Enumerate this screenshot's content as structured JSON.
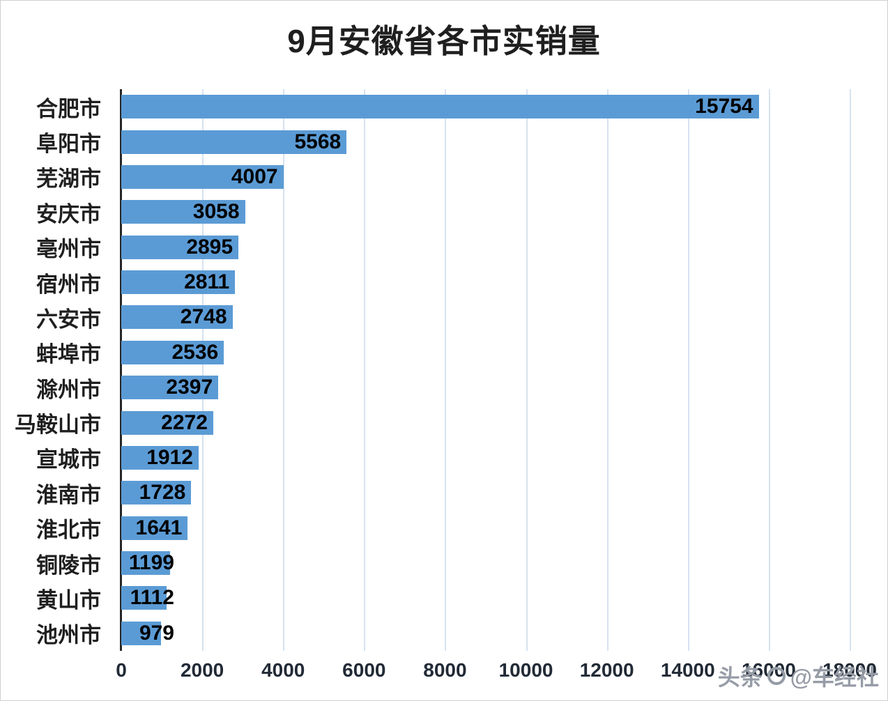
{
  "title": "9月安徽省各市实销量",
  "watermark": {
    "prefix": "头条",
    "handle": "@车经社"
  },
  "chart_data": {
    "type": "bar",
    "orientation": "horizontal",
    "title": "9月安徽省各市实销量",
    "categories": [
      "合肥市",
      "阜阳市",
      "芜湖市",
      "安庆市",
      "亳州市",
      "宿州市",
      "六安市",
      "蚌埠市",
      "滁州市",
      "马鞍山市",
      "宣城市",
      "淮南市",
      "淮北市",
      "铜陵市",
      "黄山市",
      "池州市"
    ],
    "values": [
      15754,
      5568,
      4007,
      3058,
      2895,
      2811,
      2748,
      2536,
      2397,
      2272,
      1912,
      1728,
      1641,
      1199,
      1112,
      979
    ],
    "xlabel": "",
    "ylabel": "",
    "xlim": [
      0,
      18000
    ],
    "x_ticks": [
      0,
      2000,
      4000,
      6000,
      8000,
      10000,
      12000,
      14000,
      16000,
      18000
    ],
    "grid": "vertical",
    "legend": false,
    "value_labels": "inside-end",
    "bar_color": "#5B9BD5",
    "grid_color": "#D6E2F0",
    "axis_color": "#262626",
    "value_label_color": "#000000"
  }
}
